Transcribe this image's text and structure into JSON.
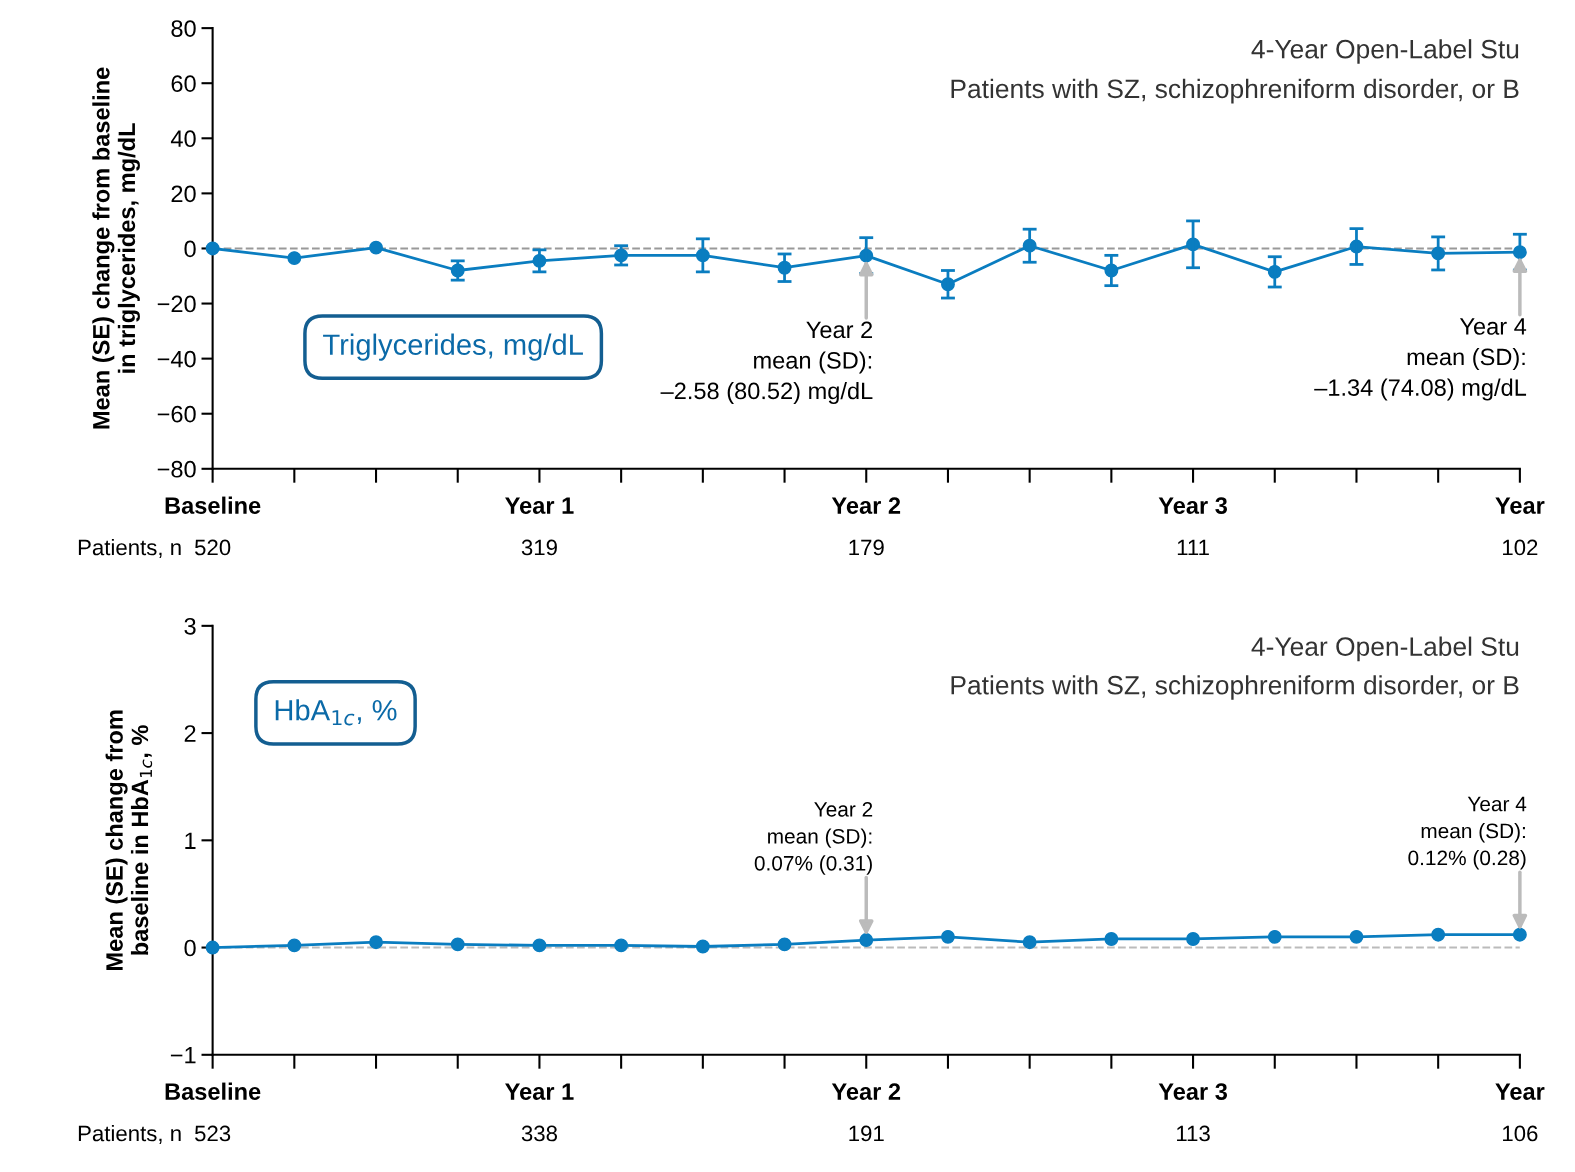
{
  "chart_data": [
    {
      "type": "line",
      "title": "4-Year Open-Label Stu",
      "subtitle": "Patients with SZ, schizophreniform disorder, or B",
      "ylabel": "Mean (SE) change from baseline\nin triglycerides, mg/dL",
      "categories": [
        "Baseline",
        null,
        null,
        null,
        "Year 1",
        null,
        null,
        null,
        "Year 2",
        null,
        null,
        null,
        "Year 3",
        null,
        null,
        null,
        "Year"
      ],
      "series": [
        {
          "color": "#0a7dc0",
          "values": [
            0,
            -3.5,
            0.3,
            -8,
            -4.5,
            -2.5,
            -2.5,
            -7,
            -2.58,
            -13,
            1,
            -8,
            1.5,
            -8.5,
            0.7,
            -1.8,
            -1.34
          ],
          "errors": [
            null,
            null,
            null,
            3.5,
            4,
            3.5,
            6,
            5,
            6.5,
            5,
            6,
            5.5,
            8.5,
            5.5,
            6.5,
            6,
            6.5
          ]
        }
      ],
      "marker": "circle",
      "line_style": "solid",
      "ylim": [
        -80,
        80
      ],
      "yticks": [
        {
          "value": -80,
          "label": "−80"
        },
        {
          "value": -60,
          "label": "−60"
        },
        {
          "value": -40,
          "label": "−40"
        },
        {
          "value": -20,
          "label": "−20"
        },
        0,
        20,
        40,
        60,
        80
      ],
      "ref_lines": [
        {
          "axis": "y",
          "value": 0,
          "color": "#999999",
          "line_style": "dashed"
        }
      ],
      "annotations": [
        "Triglycerides, mg/dL",
        "Patients, n",
        {
          "text": "Year 2\nmean (SD):\n–2.58 (80.52) mg/dL",
          "x": "Year 2",
          "y": -2.58
        },
        {
          "text": "Year 4\nmean (SD):\n–1.34 (74.08) mg/dL",
          "x": "Year",
          "y": -1.34
        },
        "520",
        "319",
        "179",
        "111",
        "102"
      ]
    },
    {
      "type": "line",
      "title": "4-Year Open-Label Stu",
      "subtitle": "Patients with SZ, schizophreniform disorder, or B",
      "ylabel": "Mean (SE) change from\nbaseline in HbA$_{1c}$, %",
      "categories": [
        "Baseline",
        null,
        null,
        null,
        "Year 1",
        null,
        null,
        null,
        "Year 2",
        null,
        null,
        null,
        "Year 3",
        null,
        null,
        null,
        "Year"
      ],
      "series": [
        {
          "color": "#0a7dc0",
          "values": [
            0,
            0.02,
            0.05,
            0.03,
            0.02,
            0.02,
            0.01,
            0.03,
            0.07,
            0.1,
            0.05,
            0.08,
            0.08,
            0.1,
            0.1,
            0.12,
            0.12
          ]
        }
      ],
      "marker": "circle",
      "line_style": "solid",
      "ylim": [
        -1,
        3
      ],
      "yticks": [
        {
          "value": -1,
          "label": "−1"
        },
        0,
        1,
        2,
        3
      ],
      "ref_lines": [
        {
          "axis": "y",
          "value": 0,
          "color": "#bbbbbb",
          "line_style": "dashed"
        }
      ],
      "annotations": [
        "HbA$_{1c}$, %",
        "Patients, n",
        {
          "text": "Year 2\nmean (SD):\n0.07% (0.31)",
          "x": "Year 2",
          "y": 0.07
        },
        {
          "text": "Year 4\nmean (SD):\n0.12% (0.28)",
          "x": "Year",
          "y": 0.12
        },
        "523",
        "338",
        "191",
        "113",
        "106"
      ]
    }
  ]
}
